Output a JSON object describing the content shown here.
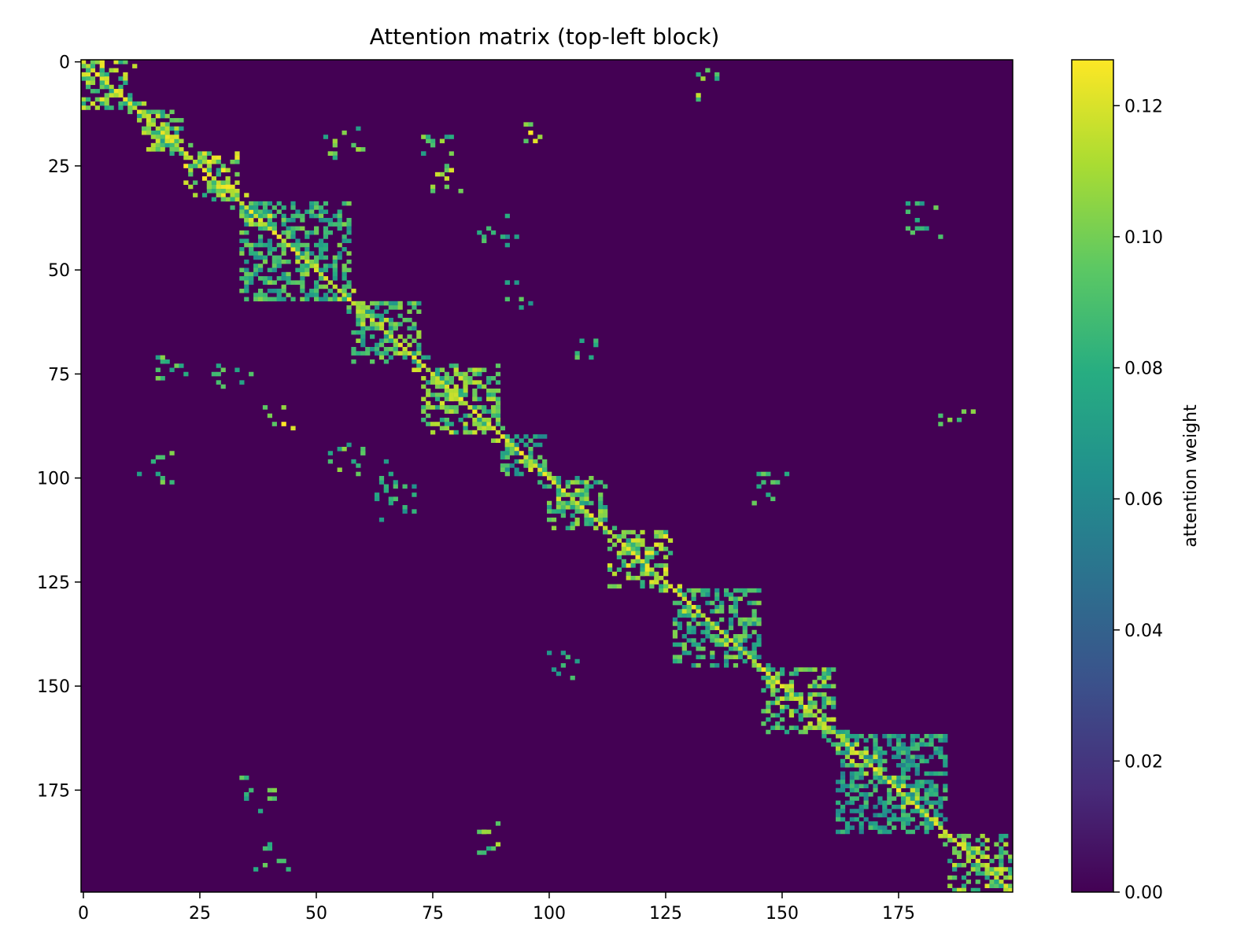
{
  "chart_data": {
    "type": "heatmap",
    "title": "Attention matrix (top-left block)",
    "xlabel": "",
    "ylabel": "",
    "xlim": [
      0,
      200
    ],
    "ylim": [
      0,
      200
    ],
    "y_inverted": true,
    "x_ticks": [
      "0",
      "25",
      "50",
      "75",
      "100",
      "125",
      "150",
      "175"
    ],
    "y_ticks": [
      "0",
      "25",
      "50",
      "75",
      "100",
      "125",
      "150",
      "175"
    ],
    "colormap": "viridis",
    "background_value": 0.0,
    "colorbar": {
      "label": "attention weight",
      "range": [
        0.0,
        0.127
      ],
      "ticks": [
        "0.00",
        "0.02",
        "0.04",
        "0.06",
        "0.08",
        "0.10",
        "0.12"
      ]
    },
    "diagonal_blocks": [
      {
        "start": 0,
        "end": 12,
        "value": 0.115
      },
      {
        "start": 12,
        "end": 22,
        "value": 0.11
      },
      {
        "start": 22,
        "end": 34,
        "value": 0.118
      },
      {
        "start": 34,
        "end": 58,
        "value": 0.095
      },
      {
        "start": 58,
        "end": 73,
        "value": 0.1
      },
      {
        "start": 73,
        "end": 90,
        "value": 0.11
      },
      {
        "start": 90,
        "end": 100,
        "value": 0.09
      },
      {
        "start": 100,
        "end": 113,
        "value": 0.1
      },
      {
        "start": 113,
        "end": 127,
        "value": 0.115
      },
      {
        "start": 127,
        "end": 146,
        "value": 0.095
      },
      {
        "start": 146,
        "end": 162,
        "value": 0.105
      },
      {
        "start": 162,
        "end": 186,
        "value": 0.085
      },
      {
        "start": 186,
        "end": 200,
        "value": 0.11
      }
    ],
    "off_diagonal_clusters": [
      {
        "row": 5,
        "col": 135,
        "value": 0.11
      },
      {
        "row": 16,
        "col": 98,
        "value": 0.12
      },
      {
        "row": 19,
        "col": 75,
        "value": 0.1
      },
      {
        "row": 20,
        "col": 56,
        "value": 0.1
      },
      {
        "row": 28,
        "col": 78,
        "value": 0.115
      },
      {
        "row": 40,
        "col": 89,
        "value": 0.085
      },
      {
        "row": 38,
        "col": 180,
        "value": 0.095
      },
      {
        "row": 55,
        "col": 94,
        "value": 0.09
      },
      {
        "row": 70,
        "col": 107,
        "value": 0.09
      },
      {
        "row": 76,
        "col": 32,
        "value": 0.105
      },
      {
        "row": 75,
        "col": 19,
        "value": 0.095
      },
      {
        "row": 85,
        "col": 42,
        "value": 0.12
      },
      {
        "row": 87,
        "col": 188,
        "value": 0.11
      },
      {
        "row": 95,
        "col": 57,
        "value": 0.1
      },
      {
        "row": 98,
        "col": 16,
        "value": 0.095
      },
      {
        "row": 100,
        "col": 68,
        "value": 0.085
      },
      {
        "row": 107,
        "col": 67,
        "value": 0.085
      },
      {
        "row": 102,
        "col": 148,
        "value": 0.1
      },
      {
        "row": 145,
        "col": 104,
        "value": 0.085
      },
      {
        "row": 176,
        "col": 38,
        "value": 0.095
      },
      {
        "row": 187,
        "col": 88,
        "value": 0.11
      },
      {
        "row": 191,
        "col": 40,
        "value": 0.095
      }
    ]
  }
}
